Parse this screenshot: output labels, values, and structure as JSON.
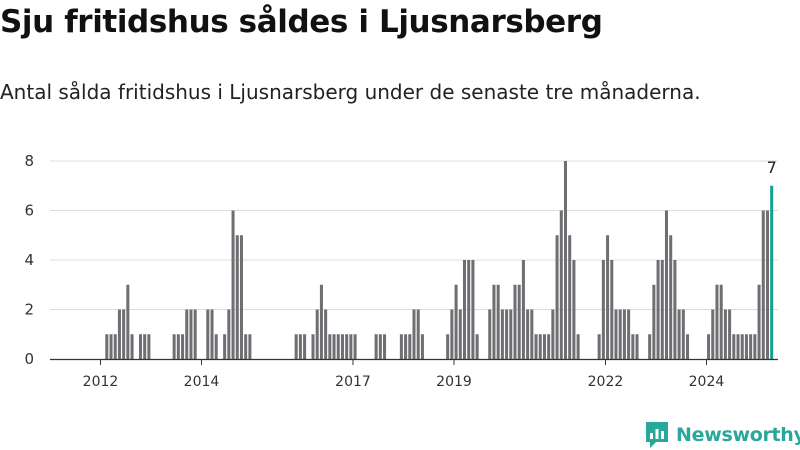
{
  "title": "Sju fritidshus såldes i Ljusnarsberg",
  "subtitle": "Antal sålda fritidshus i Ljusnarsberg under de senaste tre månaderna.",
  "brand": {
    "name": "Newsworthy",
    "color": "#2aa69a"
  },
  "chart_data": {
    "type": "bar",
    "title": "",
    "xlabel": "",
    "ylabel": "",
    "ylim": [
      0,
      8
    ],
    "yticks": [
      0,
      2,
      4,
      6,
      8
    ],
    "grid": true,
    "legend": "none",
    "x_start_month": "2011-01",
    "x_end_month": "2025-06",
    "xtick_labels": [
      "2012",
      "2014",
      "2017",
      "2019",
      "2022",
      "2024"
    ],
    "bar_color": "#6f6f73",
    "highlight_color": "#14a08f",
    "highlight_label": "7",
    "series": [
      {
        "start_month": "2011-06",
        "values": [
          0,
          0,
          0,
          0,
          0,
          0,
          0,
          0,
          1,
          1,
          1,
          2,
          2,
          3,
          1,
          0,
          1,
          1,
          1,
          0,
          0,
          0,
          0,
          0,
          1,
          1,
          1,
          2,
          2,
          2,
          0,
          0,
          2,
          2,
          1,
          0,
          1,
          2,
          6,
          5,
          5,
          1,
          1,
          0,
          0,
          0,
          0,
          0,
          0,
          0,
          0,
          0,
          0,
          1,
          1,
          1,
          0,
          1,
          2,
          3,
          2,
          1,
          1,
          1,
          1,
          1,
          1,
          1,
          0,
          0,
          0,
          0,
          1,
          1,
          1,
          0,
          0,
          0,
          1,
          1,
          1,
          2,
          2,
          1,
          0,
          0,
          0,
          0,
          0,
          1,
          2,
          3,
          2,
          4,
          4,
          4,
          1,
          0,
          0,
          2,
          3,
          3,
          2,
          2,
          2,
          3,
          3,
          4,
          2,
          2,
          1,
          1,
          1,
          1,
          2,
          5,
          6,
          8,
          5,
          4,
          1,
          0,
          0,
          0,
          0,
          1,
          4,
          5,
          4,
          2,
          2,
          2,
          2,
          1,
          1,
          0,
          0,
          1,
          3,
          4,
          4,
          6,
          5,
          4,
          2,
          2,
          1,
          0,
          0,
          0,
          0,
          1,
          2,
          3,
          3,
          2,
          2,
          1,
          1,
          1,
          1,
          1,
          1,
          3,
          6,
          6,
          7
        ]
      }
    ]
  }
}
